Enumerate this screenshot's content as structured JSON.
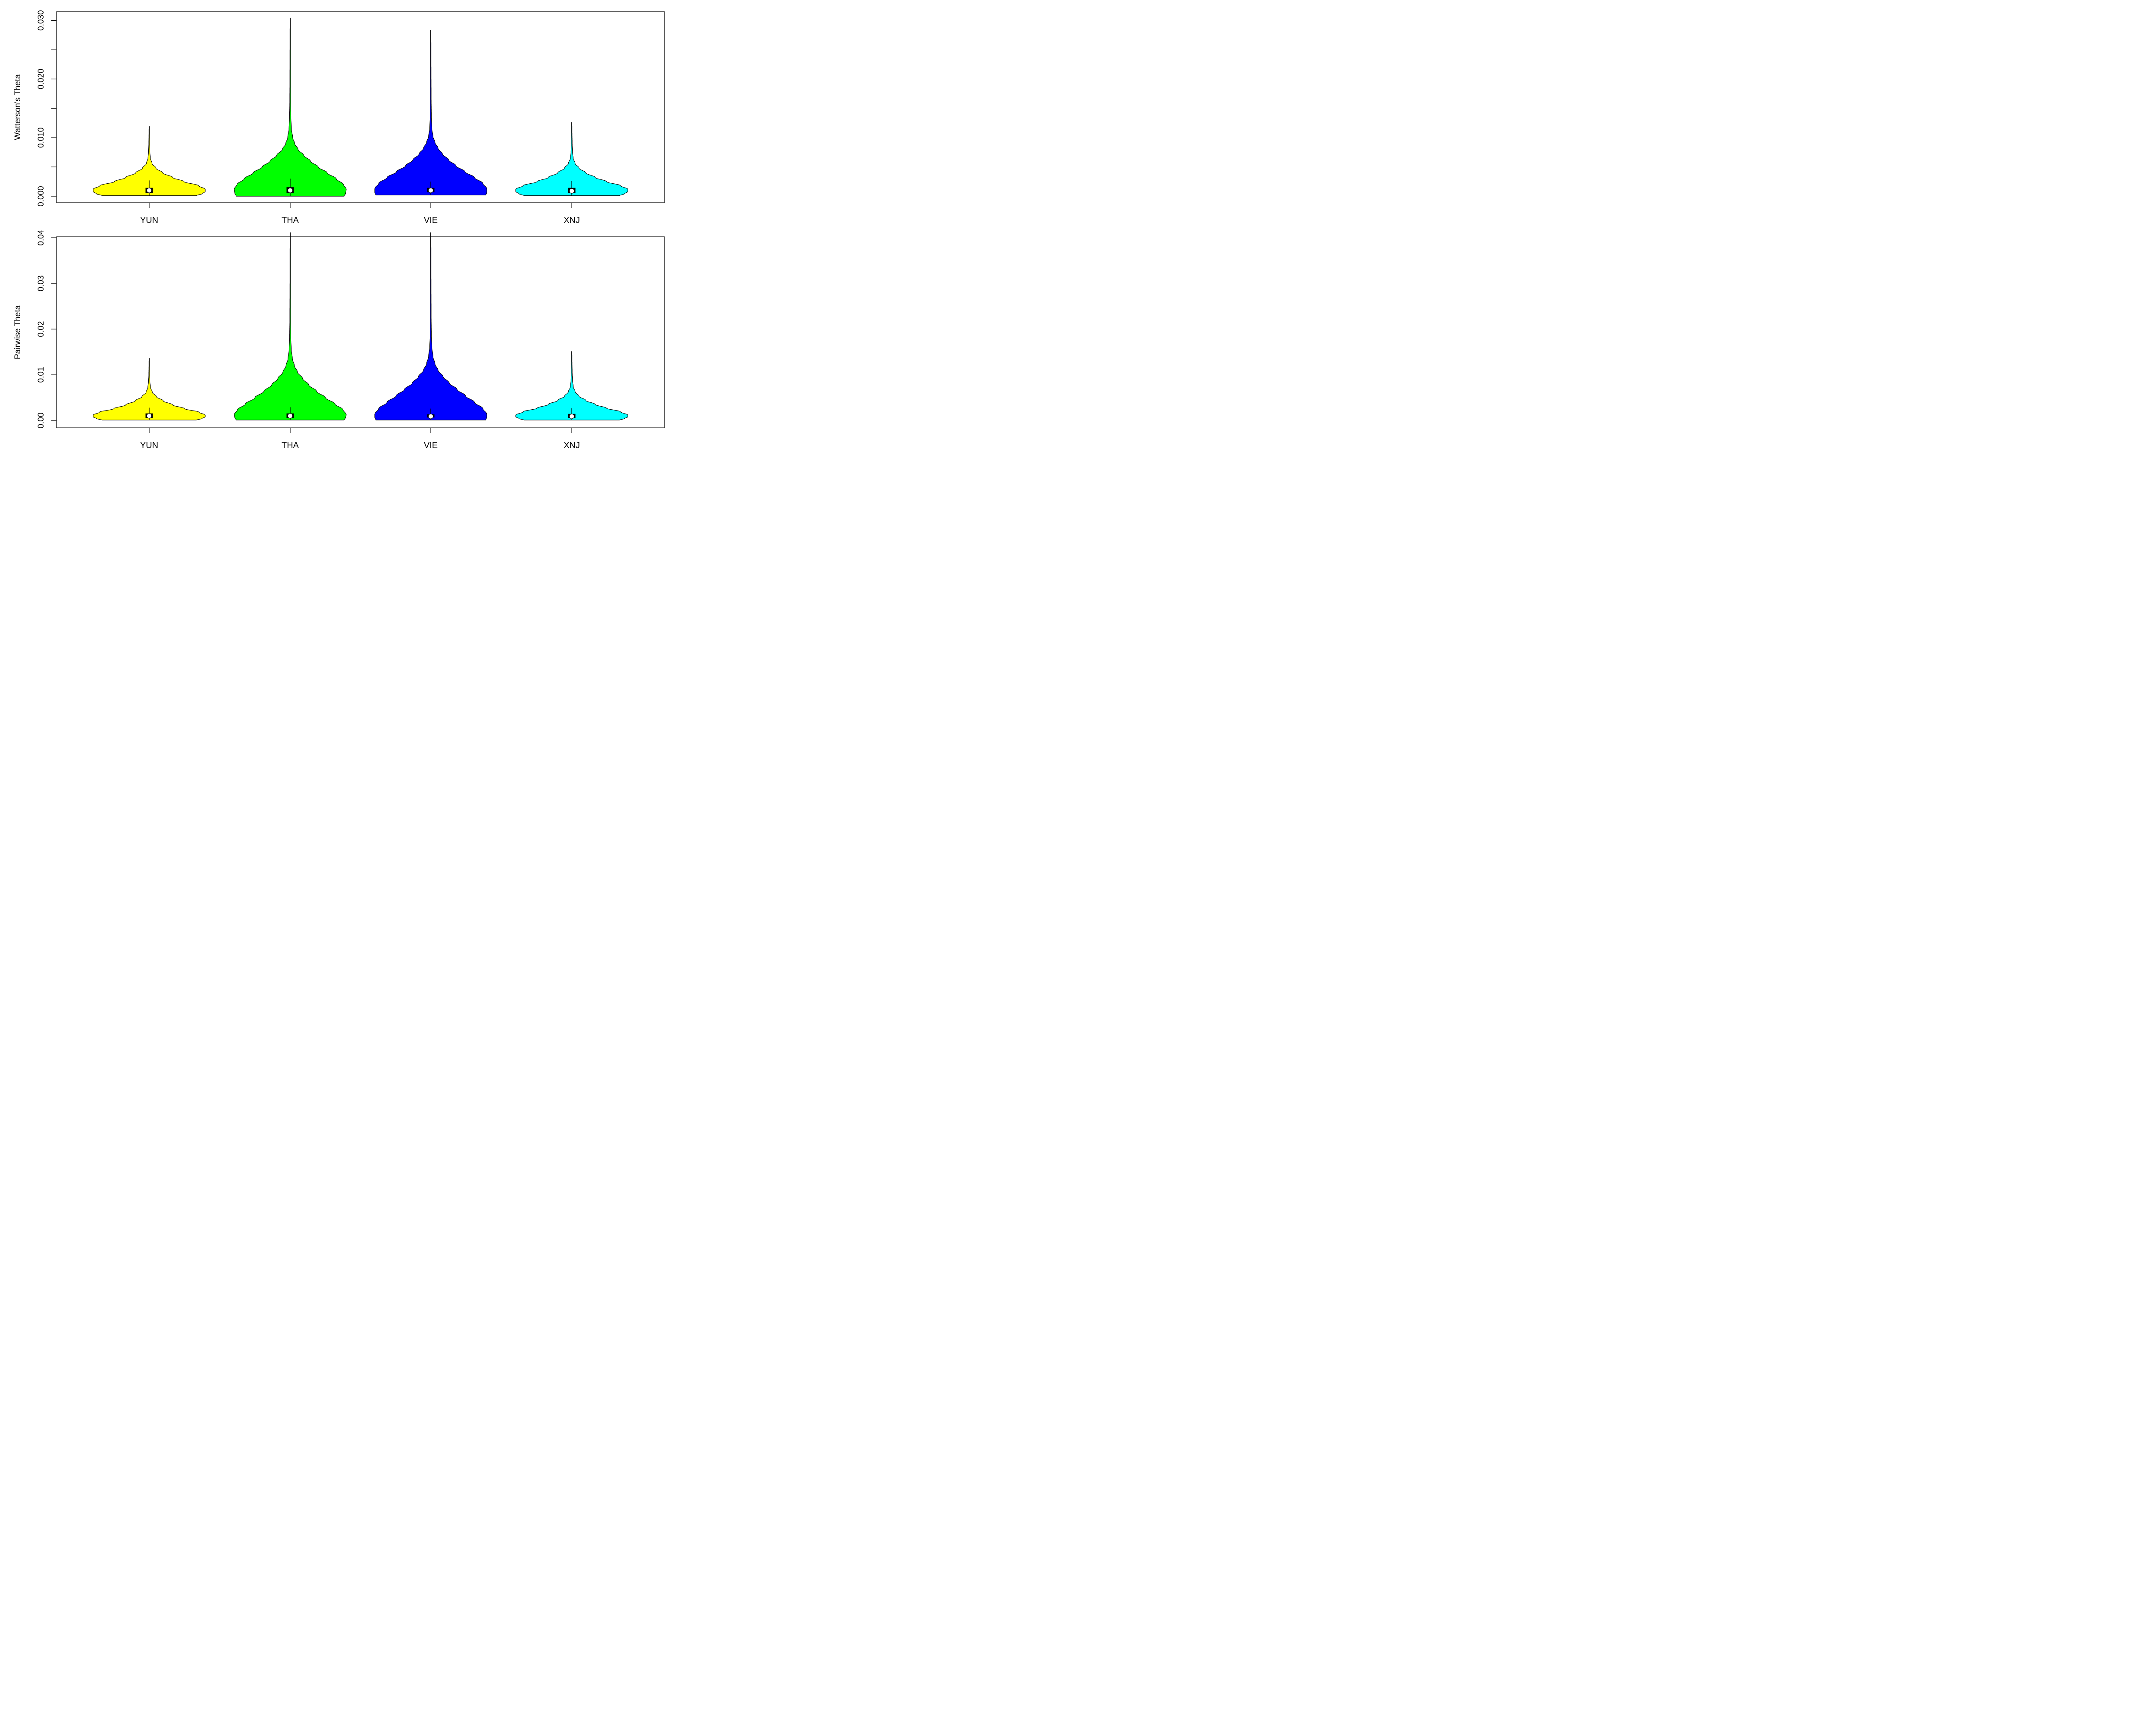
{
  "chart_data": [
    {
      "type": "violin",
      "ylabel": "Watterson's Theta",
      "ylim": [
        -0.0011,
        0.0315
      ],
      "yticks": [
        0.0,
        0.005,
        0.01,
        0.015,
        0.02,
        0.025,
        0.03
      ],
      "ytick_labels": [
        "0.000",
        "",
        "0.010",
        "",
        "0.020",
        "",
        "0.030"
      ],
      "categories": [
        "YUN",
        "THA",
        "VIE",
        "XNJ"
      ],
      "colors": [
        "#FFFF00",
        "#00FF00",
        "#0000FF",
        "#00FFFF"
      ],
      "series": [
        {
          "category": "YUN",
          "min": 0.0001,
          "max": 0.0119,
          "q1": 0.0006,
          "median": 0.001,
          "q3": 0.0014,
          "whisker_low": 0.0001,
          "whisker_high": 0.0027,
          "peak": 0.0012,
          "profile": [
            [
              0.0001,
              0.84
            ],
            [
              0.0004,
              0.94
            ],
            [
              0.0008,
              1.0
            ],
            [
              0.0012,
              1.0
            ],
            [
              0.0018,
              0.88
            ],
            [
              0.0025,
              0.62
            ],
            [
              0.0032,
              0.42
            ],
            [
              0.004,
              0.24
            ],
            [
              0.0048,
              0.12
            ],
            [
              0.0056,
              0.05
            ],
            [
              0.0065,
              0.022
            ],
            [
              0.0075,
              0.012
            ],
            [
              0.009,
              0.007
            ],
            [
              0.0105,
              0.005
            ],
            [
              0.0119,
              0.004
            ]
          ]
        },
        {
          "category": "THA",
          "min": 0.0,
          "max": 0.0304,
          "q1": 0.0006,
          "median": 0.001,
          "q3": 0.0015,
          "whisker_low": 0.0,
          "whisker_high": 0.003,
          "peak": 0.0012,
          "profile": [
            [
              0.0,
              0.96
            ],
            [
              0.0005,
              0.99
            ],
            [
              0.0012,
              1.0
            ],
            [
              0.002,
              0.95
            ],
            [
              0.003,
              0.82
            ],
            [
              0.004,
              0.66
            ],
            [
              0.005,
              0.5
            ],
            [
              0.006,
              0.36
            ],
            [
              0.007,
              0.24
            ],
            [
              0.008,
              0.14
            ],
            [
              0.009,
              0.08
            ],
            [
              0.01,
              0.045
            ],
            [
              0.0115,
              0.022
            ],
            [
              0.0135,
              0.012
            ],
            [
              0.016,
              0.008
            ],
            [
              0.02,
              0.006
            ],
            [
              0.025,
              0.005
            ],
            [
              0.0304,
              0.004
            ]
          ]
        },
        {
          "category": "VIE",
          "min": 0.0002,
          "max": 0.0283,
          "q1": 0.0007,
          "median": 0.001,
          "q3": 0.0014,
          "whisker_low": 0.0002,
          "whisker_high": 0.0025,
          "peak": 0.0013,
          "profile": [
            [
              0.0002,
              0.98
            ],
            [
              0.0006,
              1.0
            ],
            [
              0.0013,
              1.0
            ],
            [
              0.0022,
              0.93
            ],
            [
              0.0032,
              0.78
            ],
            [
              0.0042,
              0.61
            ],
            [
              0.0052,
              0.45
            ],
            [
              0.0062,
              0.32
            ],
            [
              0.0072,
              0.21
            ],
            [
              0.0082,
              0.13
            ],
            [
              0.0092,
              0.075
            ],
            [
              0.0102,
              0.04
            ],
            [
              0.0115,
              0.02
            ],
            [
              0.0135,
              0.011
            ],
            [
              0.017,
              0.007
            ],
            [
              0.022,
              0.005
            ],
            [
              0.0283,
              0.004
            ]
          ]
        },
        {
          "category": "XNJ",
          "min": 0.0001,
          "max": 0.0126,
          "q1": 0.0006,
          "median": 0.0009,
          "q3": 0.0014,
          "whisker_low": 0.0001,
          "whisker_high": 0.0026,
          "peak": 0.0011,
          "profile": [
            [
              0.0001,
              0.85
            ],
            [
              0.0004,
              0.94
            ],
            [
              0.0008,
              1.0
            ],
            [
              0.0012,
              1.0
            ],
            [
              0.0018,
              0.87
            ],
            [
              0.0025,
              0.62
            ],
            [
              0.0032,
              0.42
            ],
            [
              0.004,
              0.25
            ],
            [
              0.0048,
              0.13
            ],
            [
              0.0056,
              0.06
            ],
            [
              0.0065,
              0.025
            ],
            [
              0.0075,
              0.013
            ],
            [
              0.009,
              0.008
            ],
            [
              0.0108,
              0.005
            ],
            [
              0.0126,
              0.004
            ]
          ]
        }
      ]
    },
    {
      "type": "violin",
      "ylabel": "Pairwise Theta",
      "ylim": [
        -0.0016,
        0.0402
      ],
      "yticks": [
        0.0,
        0.01,
        0.02,
        0.03,
        0.04
      ],
      "ytick_labels": [
        "0.00",
        "0.01",
        "0.02",
        "0.03",
        "0.04"
      ],
      "categories": [
        "YUN",
        "THA",
        "VIE",
        "XNJ"
      ],
      "colors": [
        "#FFFF00",
        "#00FF00",
        "#0000FF",
        "#00FFFF"
      ],
      "series": [
        {
          "category": "YUN",
          "min": 0.0001,
          "max": 0.0136,
          "q1": 0.0006,
          "median": 0.001,
          "q3": 0.0015,
          "whisker_low": 0.0001,
          "whisker_high": 0.0028,
          "peak": 0.0012,
          "profile": [
            [
              0.0001,
              0.84
            ],
            [
              0.0004,
              0.94
            ],
            [
              0.0008,
              1.0
            ],
            [
              0.0012,
              1.0
            ],
            [
              0.0018,
              0.89
            ],
            [
              0.0026,
              0.63
            ],
            [
              0.0034,
              0.42
            ],
            [
              0.0043,
              0.25
            ],
            [
              0.0052,
              0.13
            ],
            [
              0.0062,
              0.055
            ],
            [
              0.0072,
              0.025
            ],
            [
              0.0085,
              0.012
            ],
            [
              0.01,
              0.007
            ],
            [
              0.0118,
              0.005
            ],
            [
              0.0136,
              0.004
            ]
          ]
        },
        {
          "category": "THA",
          "min": 0.0001,
          "max": 0.0411,
          "q1": 0.0006,
          "median": 0.001,
          "q3": 0.0015,
          "whisker_low": 0.0001,
          "whisker_high": 0.0029,
          "peak": 0.0013,
          "profile": [
            [
              0.0001,
              0.96
            ],
            [
              0.0006,
              0.99
            ],
            [
              0.0013,
              1.0
            ],
            [
              0.0024,
              0.94
            ],
            [
              0.0036,
              0.8
            ],
            [
              0.005,
              0.63
            ],
            [
              0.0064,
              0.47
            ],
            [
              0.0078,
              0.33
            ],
            [
              0.0092,
              0.22
            ],
            [
              0.0106,
              0.13
            ],
            [
              0.012,
              0.075
            ],
            [
              0.0135,
              0.04
            ],
            [
              0.0155,
              0.02
            ],
            [
              0.018,
              0.011
            ],
            [
              0.022,
              0.007
            ],
            [
              0.03,
              0.005
            ],
            [
              0.0411,
              0.004
            ]
          ]
        },
        {
          "category": "VIE",
          "min": 0.0001,
          "max": 0.0411,
          "q1": 0.0007,
          "median": 0.0009,
          "q3": 0.0013,
          "whisker_low": 0.0001,
          "whisker_high": 0.0026,
          "peak": 0.0014,
          "profile": [
            [
              0.0001,
              0.98
            ],
            [
              0.0007,
              1.0
            ],
            [
              0.0014,
              1.0
            ],
            [
              0.0026,
              0.93
            ],
            [
              0.004,
              0.78
            ],
            [
              0.0054,
              0.62
            ],
            [
              0.0068,
              0.47
            ],
            [
              0.0082,
              0.33
            ],
            [
              0.0096,
              0.22
            ],
            [
              0.011,
              0.13
            ],
            [
              0.0124,
              0.075
            ],
            [
              0.014,
              0.04
            ],
            [
              0.016,
              0.02
            ],
            [
              0.0185,
              0.011
            ],
            [
              0.023,
              0.007
            ],
            [
              0.031,
              0.005
            ],
            [
              0.0411,
              0.004
            ]
          ]
        },
        {
          "category": "XNJ",
          "min": 0.0001,
          "max": 0.0151,
          "q1": 0.0006,
          "median": 0.0009,
          "q3": 0.0014,
          "whisker_low": 0.0001,
          "whisker_high": 0.0027,
          "peak": 0.0012,
          "profile": [
            [
              0.0001,
              0.85
            ],
            [
              0.0004,
              0.94
            ],
            [
              0.0008,
              1.0
            ],
            [
              0.0012,
              1.0
            ],
            [
              0.0019,
              0.87
            ],
            [
              0.0027,
              0.62
            ],
            [
              0.0035,
              0.42
            ],
            [
              0.0044,
              0.25
            ],
            [
              0.0053,
              0.13
            ],
            [
              0.0063,
              0.06
            ],
            [
              0.0074,
              0.026
            ],
            [
              0.0088,
              0.013
            ],
            [
              0.0105,
              0.008
            ],
            [
              0.0128,
              0.005
            ],
            [
              0.0151,
              0.004
            ]
          ]
        }
      ]
    }
  ]
}
